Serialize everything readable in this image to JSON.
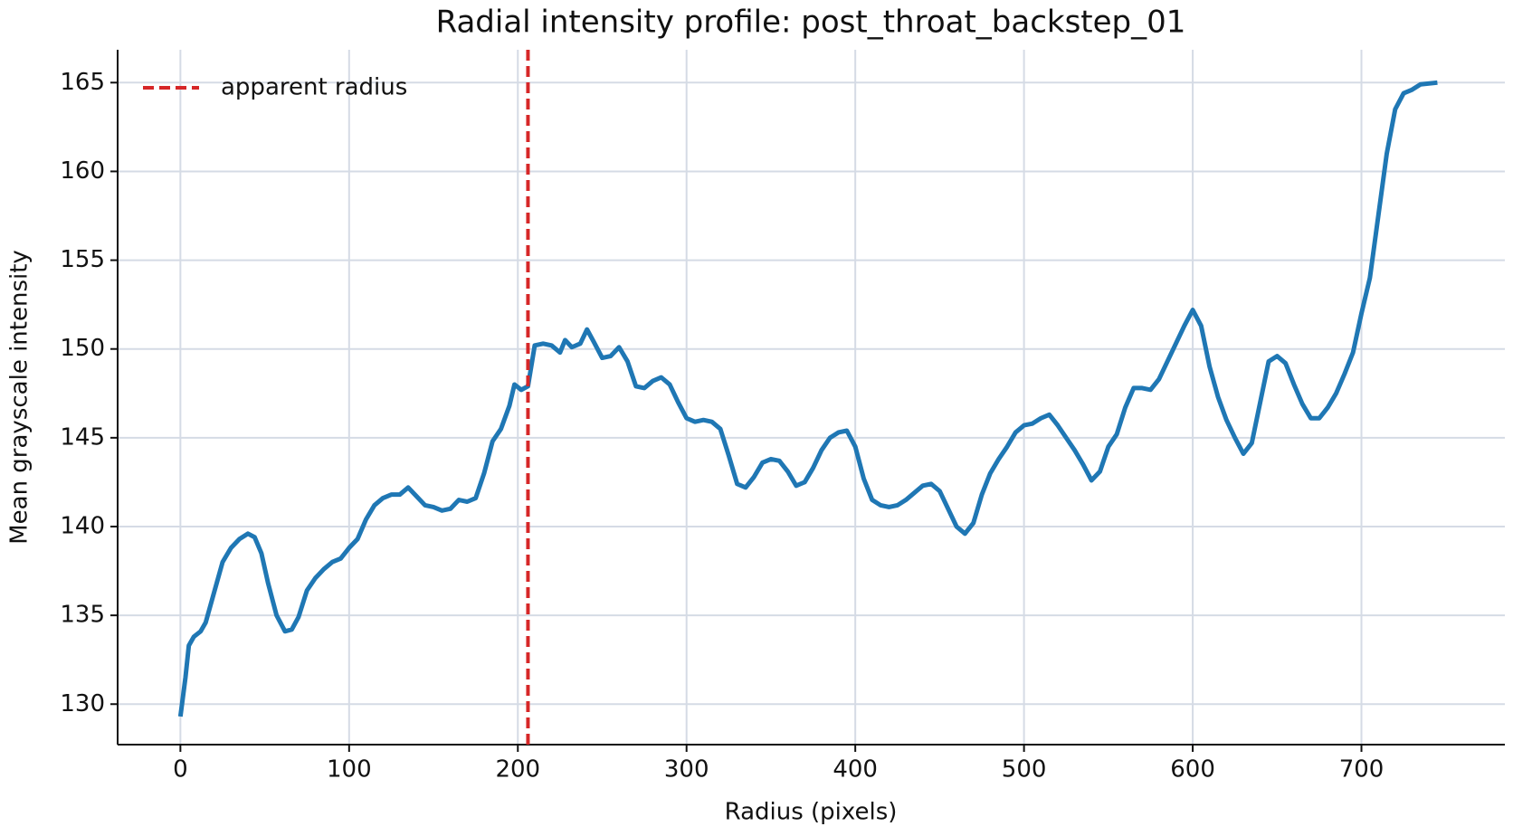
{
  "chart_data": {
    "type": "line",
    "title": "Radial intensity profile: post_throat_backstep_01",
    "xlabel": "Radius (pixels)",
    "ylabel": "Mean grayscale intensity",
    "x": [
      0,
      3,
      5,
      8,
      12,
      15,
      20,
      25,
      30,
      35,
      40,
      44,
      48,
      52,
      57,
      62,
      66,
      70,
      75,
      80,
      85,
      90,
      95,
      100,
      105,
      110,
      115,
      120,
      125,
      130,
      135,
      140,
      145,
      150,
      155,
      160,
      165,
      170,
      175,
      180,
      185,
      190,
      195,
      198,
      202,
      206,
      210,
      215,
      220,
      225,
      228,
      232,
      237,
      241,
      245,
      250,
      255,
      260,
      265,
      270,
      275,
      280,
      285,
      290,
      295,
      300,
      305,
      310,
      315,
      320,
      325,
      330,
      335,
      340,
      345,
      350,
      355,
      360,
      365,
      370,
      375,
      380,
      385,
      390,
      395,
      400,
      405,
      410,
      415,
      420,
      425,
      430,
      435,
      440,
      445,
      450,
      455,
      460,
      465,
      470,
      475,
      480,
      485,
      490,
      495,
      500,
      505,
      510,
      515,
      520,
      525,
      530,
      535,
      540,
      545,
      550,
      555,
      560,
      565,
      570,
      575,
      580,
      585,
      590,
      595,
      600,
      605,
      610,
      615,
      620,
      625,
      630,
      635,
      640,
      645,
      650,
      655,
      660,
      665,
      670,
      675,
      680,
      685,
      690,
      695,
      700,
      705,
      710,
      715,
      720,
      725,
      730,
      735,
      745
    ],
    "series": [
      {
        "name": null,
        "color": "#1f77b4",
        "values": [
          129.3,
          131.5,
          133.3,
          133.8,
          134.1,
          134.6,
          136.3,
          138.0,
          138.8,
          139.3,
          139.6,
          139.4,
          138.5,
          136.8,
          135.0,
          134.1,
          134.2,
          134.9,
          136.4,
          137.1,
          137.6,
          138.0,
          138.2,
          138.8,
          139.3,
          140.4,
          141.2,
          141.6,
          141.8,
          141.8,
          142.2,
          141.7,
          141.2,
          141.1,
          140.9,
          141.0,
          141.5,
          141.4,
          141.6,
          143.0,
          144.8,
          145.5,
          146.8,
          148.0,
          147.7,
          147.9,
          150.2,
          150.3,
          150.2,
          149.8,
          150.5,
          150.1,
          150.3,
          151.1,
          150.4,
          149.5,
          149.6,
          150.1,
          149.3,
          147.9,
          147.8,
          148.2,
          148.4,
          148.0,
          147.0,
          146.1,
          145.9,
          146.0,
          145.9,
          145.5,
          144.0,
          142.4,
          142.2,
          142.8,
          143.6,
          143.8,
          143.7,
          143.1,
          142.3,
          142.5,
          143.3,
          144.3,
          145.0,
          145.3,
          145.4,
          144.5,
          142.7,
          141.5,
          141.2,
          141.1,
          141.2,
          141.5,
          141.9,
          142.3,
          142.4,
          142.0,
          141.0,
          140.0,
          139.6,
          140.2,
          141.8,
          143.0,
          143.8,
          144.5,
          145.3,
          145.7,
          145.8,
          146.1,
          146.3,
          145.7,
          145.0,
          144.3,
          143.5,
          142.6,
          143.1,
          144.5,
          145.2,
          146.7,
          147.8,
          147.8,
          147.7,
          148.3,
          149.3,
          150.3,
          151.3,
          152.2,
          151.3,
          149.0,
          147.3,
          146.0,
          145.0,
          144.1,
          144.7,
          147.0,
          149.3,
          149.6,
          149.2,
          148.0,
          146.9,
          146.1,
          146.1,
          146.7,
          147.5,
          148.6,
          149.8,
          152.0,
          154.0,
          157.5,
          161.0,
          163.5,
          164.4,
          164.6,
          164.9,
          165.0
        ]
      }
    ],
    "vline": {
      "x": 206,
      "name": "apparent radius",
      "color": "#d62728"
    },
    "xlim": [
      -37.2,
      785
    ],
    "ylim": [
      127.72,
      166.85
    ],
    "xticks": [
      0,
      100,
      200,
      300,
      400,
      500,
      600,
      700
    ],
    "yticks": [
      130,
      135,
      140,
      145,
      150,
      155,
      160,
      165
    ],
    "grid": true,
    "legend": "upper left"
  }
}
